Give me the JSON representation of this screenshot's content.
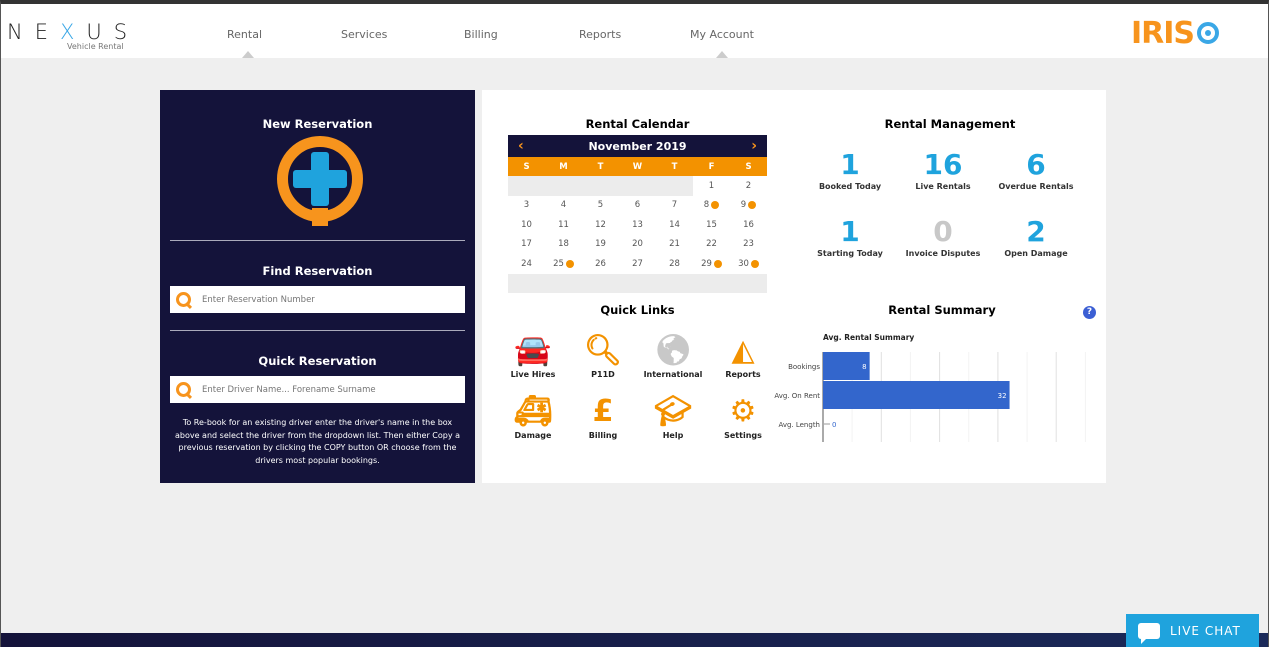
{
  "header": {
    "logo": "NEXUS",
    "logo_sub": "Vehicle Rental",
    "nav": [
      "Rental",
      "Services",
      "Billing",
      "Reports",
      "My Account"
    ],
    "brand": "IRIS"
  },
  "new_reservation": {
    "title": "New Reservation"
  },
  "find_reservation": {
    "title": "Find Reservation",
    "placeholder": "Enter Reservation Number"
  },
  "quick_reservation": {
    "title": "Quick Reservation",
    "placeholder": "Enter Driver Name... Forename Surname",
    "help": "To Re-book for an existing driver enter the driver's name in the box above and select the driver from the dropdown list. Then either Copy a previous reservation by clicking the COPY button OR choose from the drivers most popular bookings."
  },
  "calendar": {
    "title": "Rental Calendar",
    "month": "November 2019",
    "prev": "‹",
    "next": "›",
    "weekdays": [
      "S",
      "M",
      "T",
      "W",
      "T",
      "F",
      "S"
    ],
    "weeks": [
      [
        null,
        null,
        null,
        null,
        null,
        1,
        2
      ],
      [
        3,
        4,
        5,
        6,
        7,
        8,
        9
      ],
      [
        10,
        11,
        12,
        13,
        14,
        15,
        16
      ],
      [
        17,
        18,
        19,
        20,
        21,
        22,
        23
      ],
      [
        24,
        25,
        26,
        27,
        28,
        29,
        30
      ]
    ],
    "marked_days": [
      8,
      9,
      25,
      29,
      30
    ],
    "accent": "#f39200",
    "header_bg": "#14133a"
  },
  "quick_links": {
    "title": "Quick Links",
    "items": [
      {
        "label": "Live Hires",
        "icon": "car-icon"
      },
      {
        "label": "P11D",
        "icon": "search-icon"
      },
      {
        "label": "International",
        "icon": "globe-icon"
      },
      {
        "label": "Reports",
        "icon": "area-chart-icon"
      },
      {
        "label": "Damage",
        "icon": "ambulance-icon"
      },
      {
        "label": "Billing",
        "icon": "pound-icon"
      },
      {
        "label": "Help",
        "icon": "graduation-cap-icon"
      },
      {
        "label": "Settings",
        "icon": "gear-icon"
      }
    ]
  },
  "rental_management": {
    "title": "Rental Management",
    "stats": [
      {
        "value": "1",
        "label": "Booked Today"
      },
      {
        "value": "16",
        "label": "Live Rentals"
      },
      {
        "value": "6",
        "label": "Overdue Rentals"
      },
      {
        "value": "1",
        "label": "Starting Today"
      },
      {
        "value": "0",
        "label": "Invoice Disputes"
      },
      {
        "value": "2",
        "label": "Open Damage"
      }
    ]
  },
  "rental_summary": {
    "title": "Rental Summary",
    "help": "?"
  },
  "chart_data": {
    "type": "bar",
    "orientation": "horizontal",
    "title": "Avg. Rental Summary",
    "categories": [
      "Bookings",
      "Avg. On Rent",
      "Avg. Length"
    ],
    "values": [
      8,
      32,
      0
    ],
    "xlim": [
      0,
      45
    ],
    "xticks": [
      0,
      10,
      20,
      30,
      40
    ],
    "grid": true,
    "color": "#3366cc"
  },
  "live_chat": {
    "label": "LIVE CHAT"
  }
}
